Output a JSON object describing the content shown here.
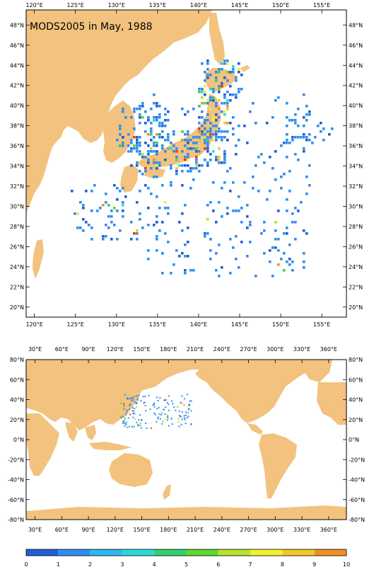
{
  "top_map": {
    "title": "MODS2005 in May, 1988",
    "lon_labels": [
      "120°E",
      "125°E",
      "130°E",
      "135°E",
      "140°E",
      "145°E",
      "150°E",
      "155°E"
    ],
    "lat_labels": [
      "48°N",
      "46°N",
      "44°N",
      "42°N",
      "40°N",
      "38°N",
      "36°N",
      "34°N",
      "32°N",
      "30°N",
      "28°N",
      "26°N",
      "24°N",
      "22°N",
      "20°N"
    ],
    "lon_range": [
      119,
      158
    ],
    "lat_range": [
      19,
      49.5
    ]
  },
  "bottom_map": {
    "lon_labels": [
      "30°E",
      "60°E",
      "90°E",
      "120°E",
      "150°E",
      "180°E",
      "210°E",
      "240°E",
      "270°E",
      "300°E",
      "330°E",
      "360°E"
    ],
    "lat_labels": [
      "80°N",
      "60°N",
      "40°N",
      "20°N",
      "0°N",
      "-20°N",
      "-40°N",
      "-60°N",
      "-80°N"
    ],
    "lon_range": [
      20,
      380
    ],
    "lat_range": [
      -80,
      80
    ]
  },
  "colorbar": {
    "tick_labels": [
      "0",
      "1",
      "2",
      "3",
      "4",
      "5",
      "6",
      "7",
      "8",
      "9",
      "10"
    ],
    "colors": [
      "#1f5fd6",
      "#2f8ef0",
      "#2fb8f0",
      "#2fd8d8",
      "#30d070",
      "#5cd82c",
      "#b8e030",
      "#f0f030",
      "#f0c828",
      "#f09028",
      "#f03818"
    ]
  },
  "colors": {
    "land": "#f2c27e",
    "sea": "#ffffff",
    "frame": "#000000"
  }
}
